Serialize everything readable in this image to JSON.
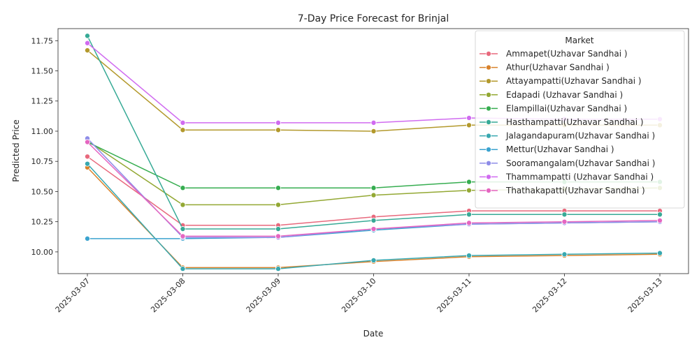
{
  "chart_data": {
    "type": "line",
    "title": "7-Day Price Forecast for Brinjal",
    "xlabel": "Date",
    "ylabel": "Predicted Price",
    "x": [
      "2025-03-07",
      "2025-03-08",
      "2025-03-09",
      "2025-03-10",
      "2025-03-11",
      "2025-03-12",
      "2025-03-13"
    ],
    "ylim": [
      9.82,
      11.85
    ],
    "yticks": [
      "10.00",
      "10.25",
      "10.50",
      "10.75",
      "11.00",
      "11.25",
      "11.50",
      "11.75"
    ],
    "grid": false,
    "legend": {
      "title": "Market",
      "position": "top-right"
    },
    "series": [
      {
        "name": "Ammapet(Uzhavar Sandhai )",
        "color": "#e8697d",
        "values": [
          10.79,
          10.22,
          10.22,
          10.29,
          10.34,
          10.34,
          10.34
        ]
      },
      {
        "name": "Athur(Uzhavar Sandhai )",
        "color": "#d9822b",
        "values": [
          10.7,
          9.87,
          9.87,
          9.92,
          9.96,
          9.97,
          9.98
        ]
      },
      {
        "name": "Attayampatti(Uzhavar Sandhai )",
        "color": "#b3992c",
        "values": [
          11.67,
          11.01,
          11.01,
          11.0,
          11.05,
          11.05,
          11.05
        ]
      },
      {
        "name": "Edapadi (Uzhavar Sandhai )",
        "color": "#93a833",
        "values": [
          10.92,
          10.39,
          10.39,
          10.47,
          10.51,
          10.52,
          10.53
        ]
      },
      {
        "name": "Elampillai(Uzhavar Sandhai )",
        "color": "#36ad50",
        "values": [
          10.91,
          10.53,
          10.53,
          10.53,
          10.58,
          10.58,
          10.58
        ]
      },
      {
        "name": "Hasthampatti(Uzhavar Sandhai )",
        "color": "#37aa96",
        "values": [
          11.79,
          10.19,
          10.19,
          10.26,
          10.31,
          10.31,
          10.31
        ]
      },
      {
        "name": "Jalagandapuram(Uzhavar Sandhai )",
        "color": "#38a8b0",
        "values": [
          10.73,
          9.86,
          9.86,
          9.93,
          9.97,
          9.98,
          9.99
        ]
      },
      {
        "name": "Mettur(Uzhavar Sandhai )",
        "color": "#3ba3cf",
        "values": [
          10.11,
          10.11,
          10.12,
          10.18,
          10.23,
          10.24,
          10.25
        ]
      },
      {
        "name": "Sooramangalam(Uzhavar Sandhai )",
        "color": "#8e8ce8",
        "values": [
          10.94,
          10.12,
          10.12,
          10.19,
          10.23,
          10.24,
          10.25
        ]
      },
      {
        "name": "Thammampatti (Uzhavar Sandhai )",
        "color": "#d06bf0",
        "values": [
          11.73,
          11.07,
          11.07,
          11.07,
          11.11,
          11.1,
          11.1
        ]
      },
      {
        "name": "Thathakapatti(Uzhavar Sandhai )",
        "color": "#e566c1",
        "values": [
          10.91,
          10.13,
          10.13,
          10.19,
          10.24,
          10.25,
          10.26
        ]
      }
    ]
  }
}
